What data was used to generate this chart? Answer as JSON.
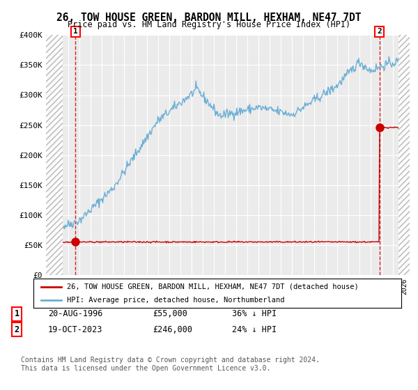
{
  "title": "26, TOW HOUSE GREEN, BARDON MILL, HEXHAM, NE47 7DT",
  "subtitle": "Price paid vs. HM Land Registry's House Price Index (HPI)",
  "ylim": [
    0,
    400000
  ],
  "xlim_start": 1994.0,
  "xlim_end": 2026.5,
  "hpi_color": "#6baed6",
  "price_color": "#cc0000",
  "sale1_year": 1996.64,
  "sale1_price": 55000,
  "sale2_year": 2023.8,
  "sale2_price": 246000,
  "legend1": "26, TOW HOUSE GREEN, BARDON MILL, HEXHAM, NE47 7DT (detached house)",
  "legend2": "HPI: Average price, detached house, Northumberland",
  "footnote": "Contains HM Land Registry data © Crown copyright and database right 2024.\nThis data is licensed under the Open Government Licence v3.0.",
  "background_color": "#ffffff",
  "plot_bg_color": "#ebebeb",
  "hatch_start": 1995.5,
  "hatch_end": 2025.5
}
